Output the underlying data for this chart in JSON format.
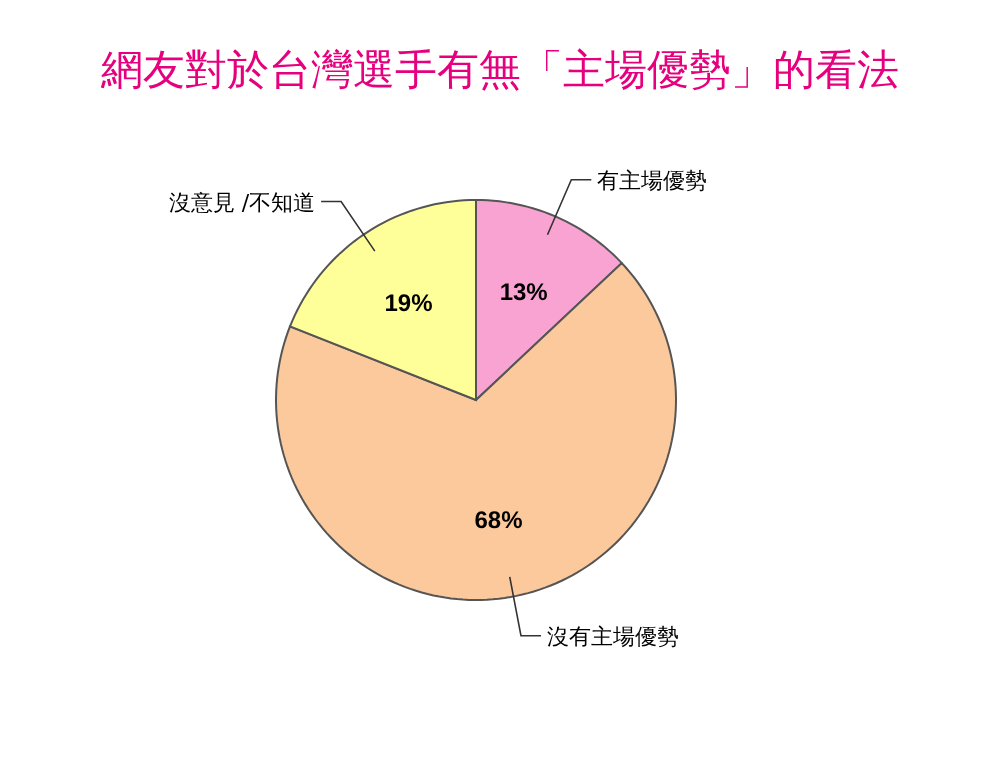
{
  "chart_data": {
    "type": "pie",
    "title": "網友對於台灣選手有無「主場優勢」的看法",
    "categories": [
      "有主場優勢",
      "沒有主場優勢",
      "沒意見 /不知道"
    ],
    "values": [
      13,
      68,
      19
    ],
    "value_labels": [
      "13%",
      "68%",
      "19%"
    ],
    "colors": [
      "#f9a3d3",
      "#fbc99c",
      "#ffff99"
    ]
  }
}
